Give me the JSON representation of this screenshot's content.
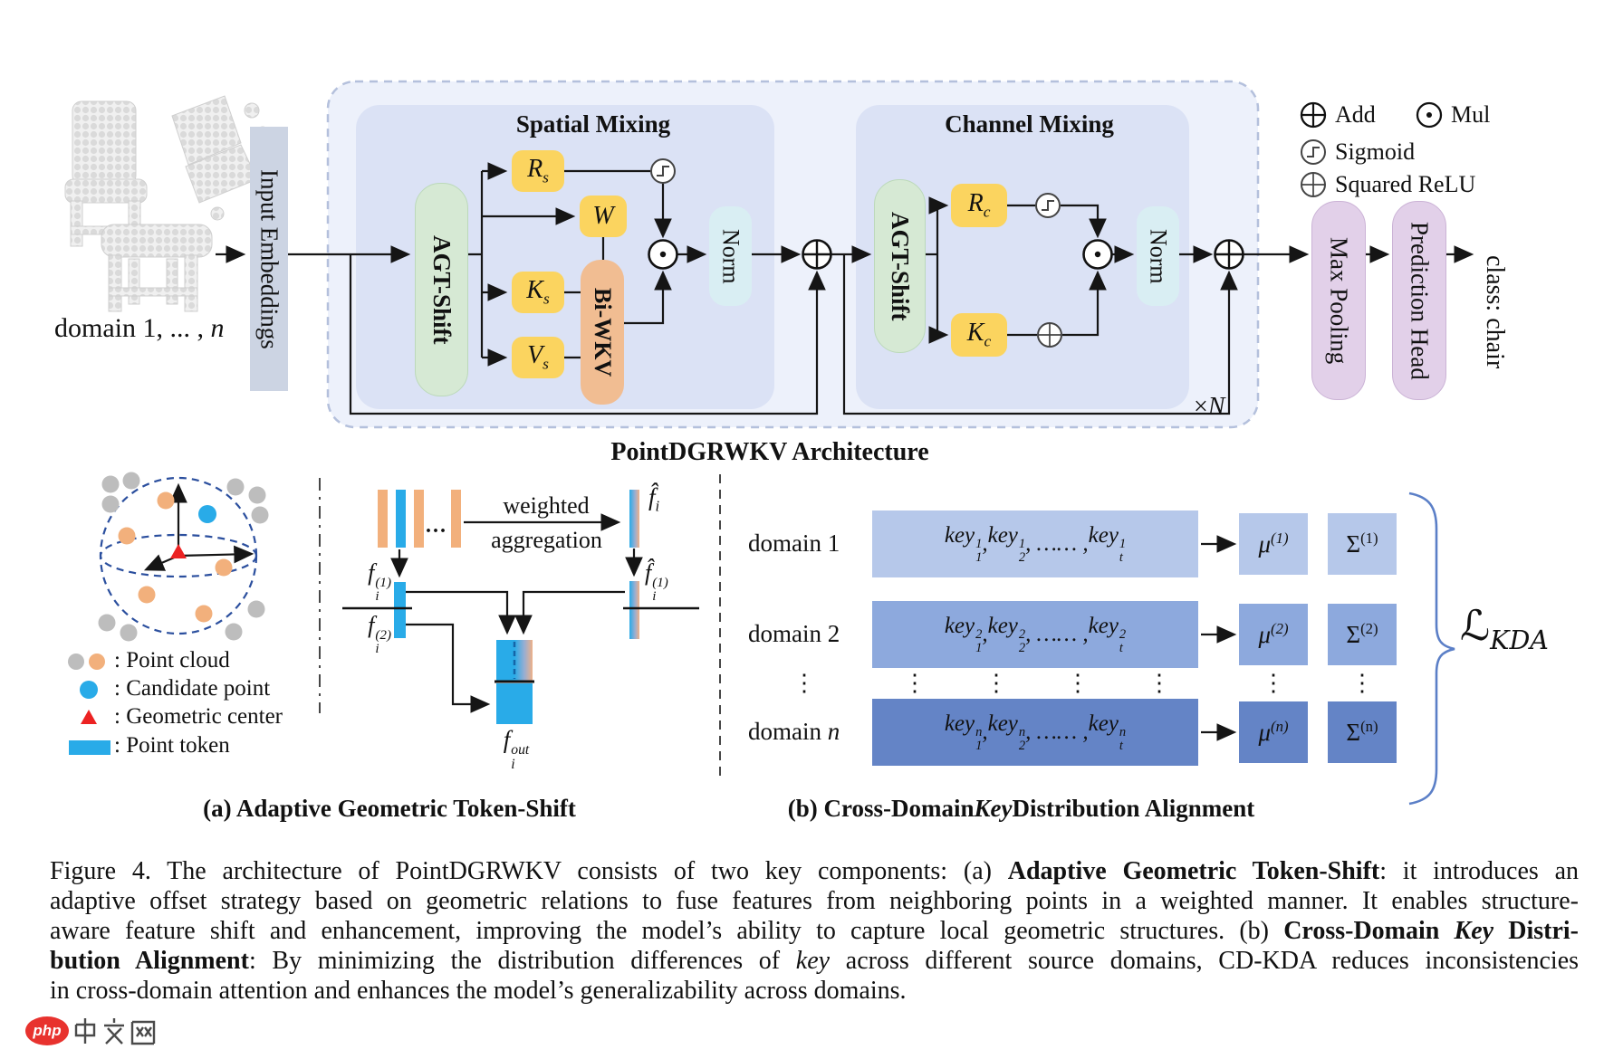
{
  "architecture": {
    "title": "PointDGRWKV Architecture",
    "domain_label": [
      {
        "t": "domain 1, ... , "
      },
      {
        "t": "n",
        "i": true
      }
    ],
    "input_embeddings": "Input Embeddings",
    "spatial": {
      "title": "Spatial Mixing",
      "agt_shift": "AGT-Shift",
      "r": [
        {
          "t": "R",
          "i": true,
          "sub": "s"
        }
      ],
      "w": [
        {
          "t": "W",
          "i": true
        }
      ],
      "k": [
        {
          "t": "K",
          "i": true,
          "sub": "s"
        }
      ],
      "v": [
        {
          "t": "V",
          "i": true,
          "sub": "s"
        }
      ],
      "bi_wkv": "Bi-WKV",
      "norm": "Norm"
    },
    "channel": {
      "title": "Channel Mixing",
      "agt_shift": "AGT-Shift",
      "r": [
        {
          "t": "R",
          "i": true,
          "sub": "c"
        }
      ],
      "k": [
        {
          "t": "K",
          "i": true,
          "sub": "c"
        }
      ],
      "norm": "Norm"
    },
    "max_pooling": "Max Pooling",
    "prediction_head": "Prediction Head",
    "output_class": "class: chair",
    "repeat": [
      {
        "t": "×"
      },
      {
        "t": "N",
        "i": true
      }
    ],
    "legend": {
      "add": "Add",
      "mul": "Mul",
      "sigmoid": "Sigmoid",
      "squared_relu": "Squared ReLU"
    }
  },
  "token_shift": {
    "ellipsis": "...",
    "weighted": "weighted",
    "aggregation": "aggregation",
    "f_hat": [
      {
        "t": "f̂",
        "i": true,
        "sub": "i"
      }
    ],
    "f_hat_1": [
      {
        "t": "f̂",
        "i": true,
        "sub": "i",
        "sup": "(1)"
      }
    ],
    "f_1": [
      {
        "t": "f",
        "i": true,
        "sub": "i",
        "sup": "(1)"
      }
    ],
    "f_2": [
      {
        "t": "f",
        "i": true,
        "sub": "i",
        "sup": "(2)"
      }
    ],
    "f_out": [
      {
        "t": "f",
        "i": true,
        "sub": "i",
        "sup": "out"
      }
    ],
    "legend": {
      "point_cloud": ": Point cloud",
      "candidate_point": ": Candidate point",
      "geometric_center": ": Geometric center",
      "point_token": ": Point token"
    },
    "caption": "(a) Adaptive Geometric Token-Shift"
  },
  "kda": {
    "rows": [
      {
        "domain": [
          {
            "t": "domain 1"
          }
        ],
        "keys": [
          {
            "t": "key",
            "i": true,
            "sub": "1",
            "sup": "1"
          },
          {
            "t": " , ",
            "i": true
          },
          {
            "t": "key",
            "i": true,
            "sub": "2",
            "sup": "1"
          },
          {
            "t": " , …… , ",
            "i": true
          },
          {
            "t": "key",
            "i": true,
            "sub": "t",
            "sup": "1"
          }
        ],
        "mu": [
          {
            "t": "μ",
            "i": true,
            "sup": "(1)"
          }
        ],
        "sigma": [
          {
            "t": "Σ",
            "sup": "(1)"
          }
        ],
        "color": "#b6c8ea"
      },
      {
        "domain": [
          {
            "t": "domain 2"
          }
        ],
        "keys": [
          {
            "t": "key",
            "i": true,
            "sub": "1",
            "sup": "2"
          },
          {
            "t": " , ",
            "i": true
          },
          {
            "t": "key",
            "i": true,
            "sub": "2",
            "sup": "2"
          },
          {
            "t": " , …… , ",
            "i": true
          },
          {
            "t": "key",
            "i": true,
            "sub": "t",
            "sup": "2"
          }
        ],
        "mu": [
          {
            "t": "μ",
            "i": true,
            "sup": "(2)"
          }
        ],
        "sigma": [
          {
            "t": "Σ",
            "sup": "(2)"
          }
        ],
        "color": "#8da9dd"
      },
      {
        "domain": [
          {
            "t": "domain "
          },
          {
            "t": "n",
            "i": true
          }
        ],
        "keys": [
          {
            "t": "key",
            "i": true,
            "sub": "1",
            "sup": "n"
          },
          {
            "t": " , ",
            "i": true
          },
          {
            "t": "key",
            "i": true,
            "sub": "2",
            "sup": "n"
          },
          {
            "t": " , …… , ",
            "i": true
          },
          {
            "t": "key",
            "i": true,
            "sub": "t",
            "sup": "n"
          }
        ],
        "mu": [
          {
            "t": "μ",
            "i": true,
            "sup": "(n)"
          }
        ],
        "sigma": [
          {
            "t": "Σ",
            "sup": "(n)"
          }
        ],
        "color": "#6484c6"
      }
    ],
    "dots": "⋮",
    "loss": [
      {
        "t": "ℒ",
        "i": true,
        "sub": "KDA"
      }
    ],
    "caption": [
      {
        "t": "(b) Cross-Domain ",
        "b": true
      },
      {
        "t": "Key",
        "b": true,
        "i": true
      },
      {
        "t": " Distribution Alignment",
        "b": true
      }
    ]
  },
  "figure_caption": {
    "lines": [
      [
        {
          "t": "Figure 4. The architecture of PointDGRWKV consists of two key components: (a) "
        },
        {
          "t": "Adaptive Geometric Token-Shift",
          "b": true
        },
        {
          "t": ": it introduces an"
        }
      ],
      [
        {
          "t": "adaptive offset strategy based on geometric relations to fuse features from neighboring points in a weighted manner. It enables structure-"
        }
      ],
      [
        {
          "t": "aware feature shift and enhancement, improving the model’s ability to capture local geometric structures. (b) "
        },
        {
          "t": "Cross-Domain ",
          "b": true
        },
        {
          "t": "Key",
          "b": true,
          "i": true
        },
        {
          "t": " Distri-",
          "b": true
        }
      ],
      [
        {
          "t": "bution Alignment",
          "b": true
        },
        {
          "t": ": By minimizing the distribution differences of "
        },
        {
          "t": "key",
          "i": true
        },
        {
          "t": " across different source domains, CD-KDA reduces inconsistencies"
        }
      ],
      [
        {
          "t": "in cross-domain attention and enhances the model’s generalizability across domains."
        }
      ]
    ]
  },
  "watermark": {
    "brand": "php",
    "suffix": "中文网"
  },
  "colors": {
    "panel_bg": "#edf1fb",
    "block_bg": "#dbe2f5",
    "input_bg": "#ccd4e3",
    "agt_green": "#d6e9d4",
    "op_yellow": "#fbd45f",
    "biwkv_orange": "#f1bd92",
    "norm_cyan": "#d9eef3",
    "pool_purple": "#e2d0e9",
    "token_blue": "#29abe8",
    "point_orange": "#f2b07c",
    "point_gray": "#bdbdbd",
    "center_red": "#ec2222",
    "brace_blue": "#5b7fc7",
    "sphere_blue": "#2b4f9e",
    "logo_red": "#e8322e"
  }
}
